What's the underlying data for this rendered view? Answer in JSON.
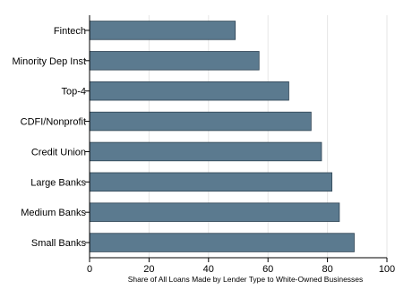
{
  "chart_data": {
    "type": "bar",
    "orientation": "horizontal",
    "categories": [
      "Fintech",
      "Minority Dep Inst",
      "Top-4",
      "CDFI/Nonprofit",
      "Credit Union",
      "Large Banks",
      "Medium Banks",
      "Small Banks"
    ],
    "values": [
      49,
      57,
      67,
      74.5,
      78,
      81.5,
      84,
      89
    ],
    "title": "",
    "xlabel": "Share of All Loans Made by Lender Type to White-Owned Businesses",
    "ylabel": "",
    "xlim": [
      0,
      100
    ],
    "xticks": [
      0,
      20,
      40,
      60,
      80,
      100
    ],
    "grid": "vertical",
    "bar_color": "#5b7a8f",
    "bar_edge_color": "#2f4454"
  }
}
